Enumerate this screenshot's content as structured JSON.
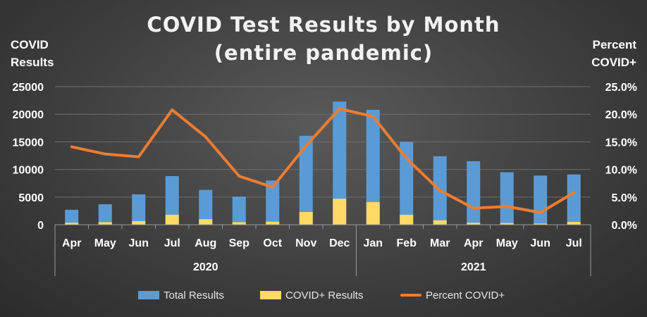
{
  "chart_data": {
    "type": "bar",
    "title_line1": "COVID Test Results by Month",
    "title_line2": "(entire pandemic)",
    "ylabel_left_line1": "COVID",
    "ylabel_left_line2": "Results",
    "ylabel_right_line1": "Percent",
    "ylabel_right_line2": "COVID+",
    "categories": [
      "Apr",
      "May",
      "Jun",
      "Jul",
      "Aug",
      "Sep",
      "Oct",
      "Nov",
      "Dec",
      "Jan",
      "Feb",
      "Mar",
      "Apr",
      "May",
      "Jun",
      "Jul"
    ],
    "year_groups": [
      {
        "label": "2020",
        "count": 9
      },
      {
        "label": "2021",
        "count": 7
      }
    ],
    "ylim_left": [
      0,
      25000
    ],
    "yticks_left": [
      "0",
      "5000",
      "10000",
      "15000",
      "20000",
      "25000"
    ],
    "ylim_right": [
      0,
      0.25
    ],
    "yticks_right": [
      "0.0%",
      "5.0%",
      "10.0%",
      "15.0%",
      "20.0%",
      "25.0%"
    ],
    "series": [
      {
        "name": "Total Results",
        "kind": "bar",
        "axis": "left",
        "color": "#5b9bd5",
        "values": [
          2700,
          3700,
          5500,
          8800,
          6300,
          5100,
          8000,
          16100,
          22300,
          20800,
          15000,
          12400,
          11500,
          9500,
          8900,
          9100
        ]
      },
      {
        "name": "COVID+ Results",
        "kind": "bar",
        "axis": "left",
        "color": "#ffd966",
        "values": [
          350,
          450,
          650,
          1800,
          1000,
          450,
          550,
          2300,
          4700,
          4100,
          1800,
          800,
          350,
          300,
          200,
          500
        ]
      },
      {
        "name": "Percent COVID+",
        "kind": "line",
        "axis": "right",
        "color": "#ed7d31",
        "values": [
          0.141,
          0.128,
          0.123,
          0.208,
          0.159,
          0.088,
          0.068,
          0.143,
          0.21,
          0.196,
          0.12,
          0.062,
          0.03,
          0.033,
          0.022,
          0.058
        ]
      }
    ],
    "grid": true,
    "legend_position": "bottom"
  }
}
